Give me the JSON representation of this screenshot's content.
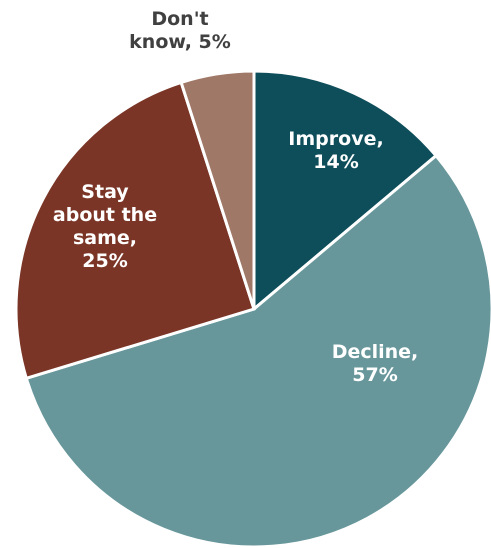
{
  "chart_data": {
    "type": "pie",
    "start_angle_deg": 0,
    "direction": "clockwise",
    "slices": [
      {
        "label": "Improve",
        "value": 14,
        "display": [
          "Improve,",
          "14%"
        ],
        "color": "#0e4e5a",
        "label_color": "#ffffff"
      },
      {
        "label": "Decline",
        "value": 57,
        "display": [
          "Decline,",
          "57%"
        ],
        "color": "#67979b",
        "label_color": "#ffffff"
      },
      {
        "label": "Stay about the same",
        "value": 25,
        "display": [
          "Stay",
          "about the",
          "same,",
          "25%"
        ],
        "color": "#7a3526",
        "label_color": "#ffffff"
      },
      {
        "label": "Don't know",
        "value": 5,
        "display": [
          "Don't",
          "know, 5%"
        ],
        "color": "#a07868",
        "label_color": "#404040"
      }
    ]
  }
}
